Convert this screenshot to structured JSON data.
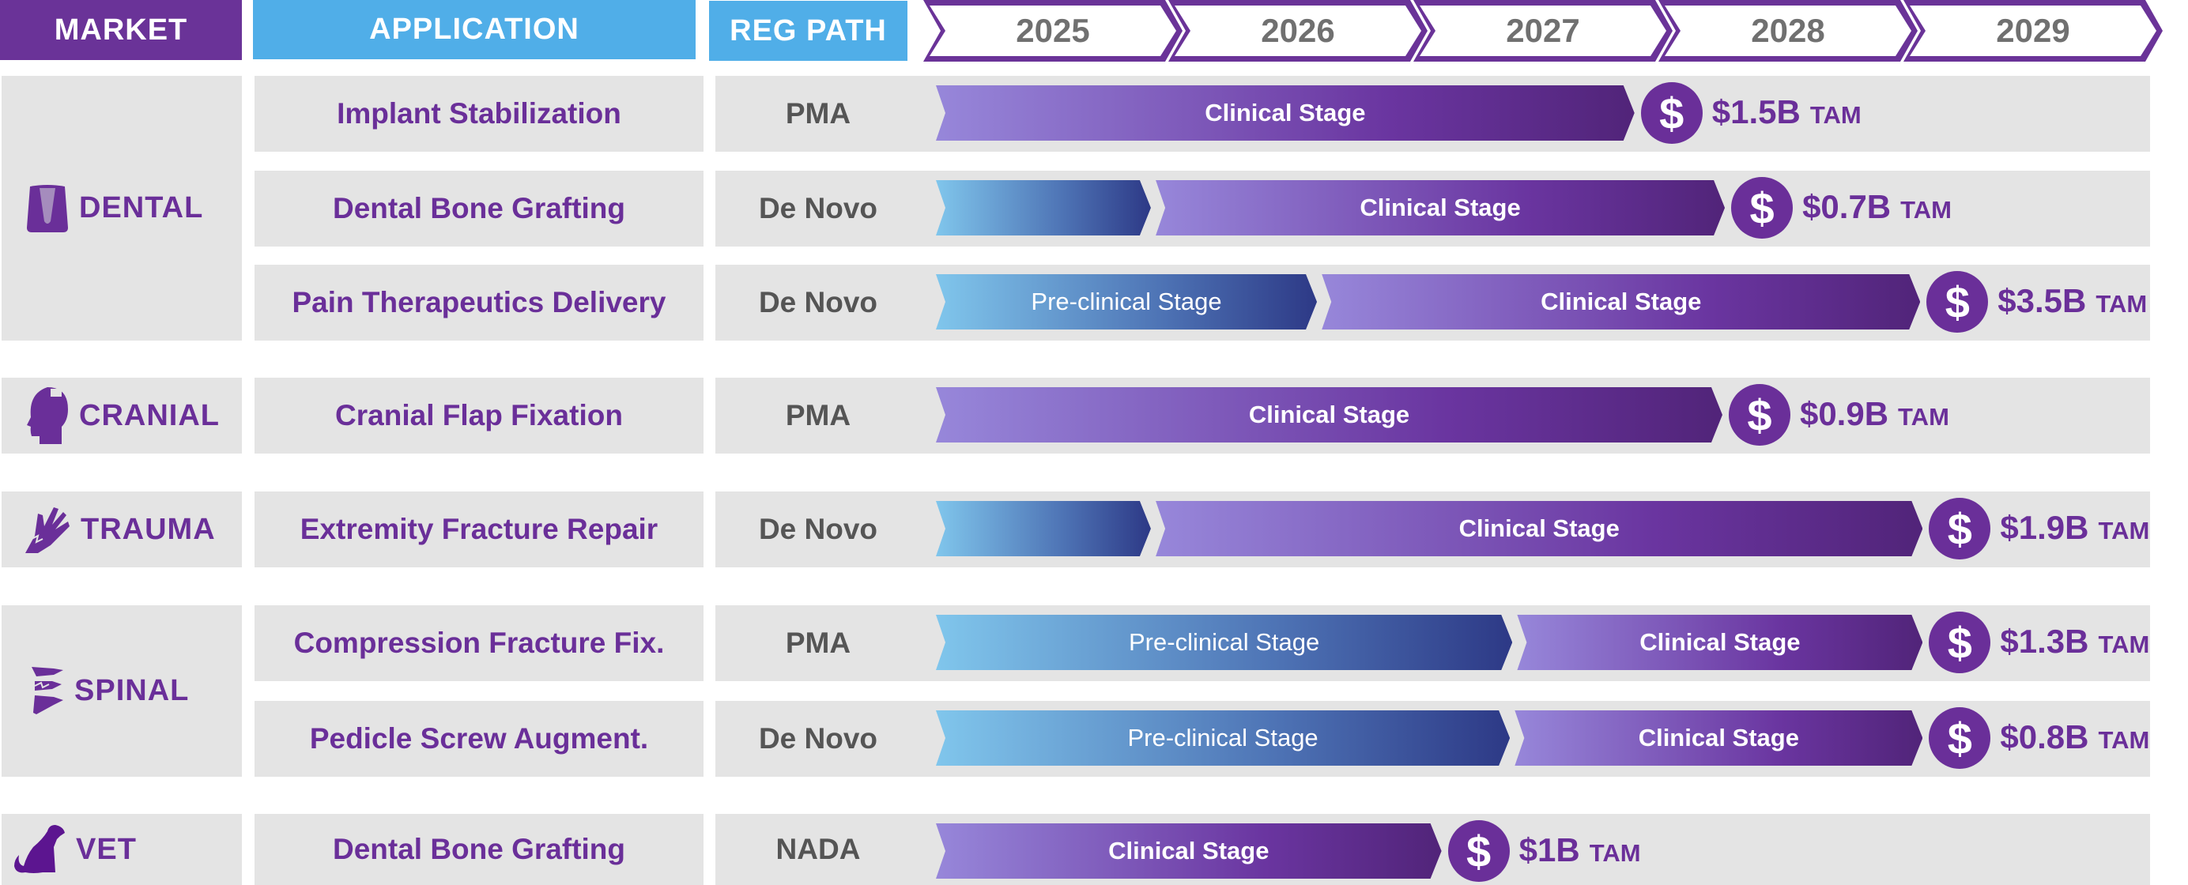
{
  "header": {
    "market": "MARKET",
    "application": "APPLICATION",
    "reg_path": "REG PATH",
    "years": [
      "2025",
      "2026",
      "2027",
      "2028",
      "2029"
    ]
  },
  "colors": {
    "purple": "#6a2f99",
    "blue_header": "#50aee8",
    "row_bg": "#e4e4e4",
    "preclinical_start": "#80c6ec",
    "preclinical_end": "#2d3986",
    "clinical_start": "#9787da",
    "clinical_end": "#512479"
  },
  "markets": [
    {
      "label": "DENTAL",
      "icon": "tooth-icon"
    },
    {
      "label": "CRANIAL",
      "icon": "head-icon"
    },
    {
      "label": "TRAUMA",
      "icon": "hand-icon"
    },
    {
      "label": "SPINAL",
      "icon": "spine-icon"
    },
    {
      "label": "VET",
      "icon": "dog-icon"
    }
  ],
  "tam_unit": "TAM",
  "coin_symbol": "$",
  "rows": [
    {
      "market": 0,
      "application": "Implant Stabilization",
      "reg_path": "PMA",
      "tam": "$1.5B",
      "stages": [
        {
          "type": "clinical",
          "label": "Clinical Stage",
          "start": 2025.0,
          "end": 2027.86
        }
      ]
    },
    {
      "market": 0,
      "application": "Dental Bone Grafting",
      "reg_path": "De Novo",
      "tam": "$0.7B",
      "stages": [
        {
          "type": "preclinical",
          "label": "",
          "start": 2025.0,
          "end": 2025.88
        },
        {
          "type": "clinical",
          "label": "Clinical Stage",
          "start": 2025.9,
          "end": 2028.23
        }
      ]
    },
    {
      "market": 0,
      "application": "Pain Therapeutics Delivery",
      "reg_path": "De Novo",
      "tam": "$3.5B",
      "stages": [
        {
          "type": "preclinical",
          "label": "Pre-clinical Stage",
          "start": 2025.0,
          "end": 2026.56
        },
        {
          "type": "clinical",
          "label": "Clinical Stage",
          "start": 2026.58,
          "end": 2029.03
        }
      ]
    },
    {
      "market": 1,
      "application": "Cranial Flap Fixation",
      "reg_path": "PMA",
      "tam": "$0.9B",
      "stages": [
        {
          "type": "clinical",
          "label": "Clinical Stage",
          "start": 2025.0,
          "end": 2028.22
        }
      ]
    },
    {
      "market": 2,
      "application": "Extremity Fracture Repair",
      "reg_path": "De Novo",
      "tam": "$1.9B",
      "stages": [
        {
          "type": "preclinical",
          "label": "",
          "start": 2025.0,
          "end": 2025.88
        },
        {
          "type": "clinical",
          "label": "Clinical Stage",
          "start": 2025.9,
          "end": 2029.04
        }
      ]
    },
    {
      "market": 3,
      "application": "Compression Fracture Fix.",
      "reg_path": "PMA",
      "tam": "$1.3B",
      "stages": [
        {
          "type": "preclinical",
          "label": "Pre-clinical Stage",
          "start": 2025.0,
          "end": 2027.36
        },
        {
          "type": "clinical",
          "label": "Clinical Stage",
          "start": 2027.38,
          "end": 2029.04
        }
      ]
    },
    {
      "market": 3,
      "application": "Pedicle Screw Augment.",
      "reg_path": "De Novo",
      "tam": "$0.8B",
      "stages": [
        {
          "type": "preclinical",
          "label": "Pre-clinical Stage",
          "start": 2025.0,
          "end": 2027.35
        },
        {
          "type": "clinical",
          "label": "Clinical Stage",
          "start": 2027.37,
          "end": 2029.04
        }
      ]
    },
    {
      "market": 4,
      "application": "Dental Bone Grafting",
      "reg_path": "NADA",
      "tam": "$1B",
      "stages": [
        {
          "type": "clinical",
          "label": "Clinical Stage",
          "start": 2025.0,
          "end": 2027.07
        }
      ]
    }
  ]
}
